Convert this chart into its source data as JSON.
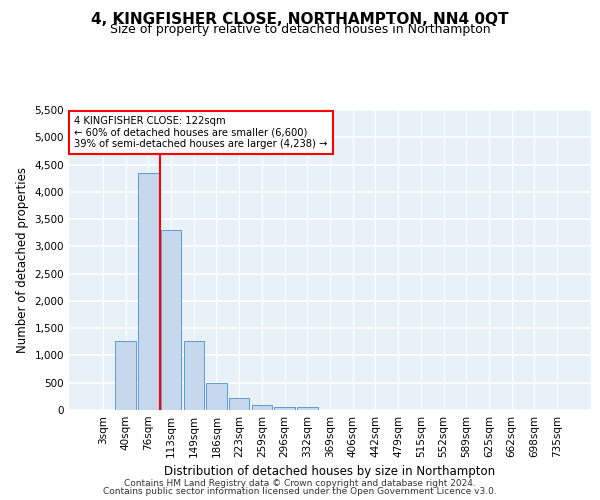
{
  "title": "4, KINGFISHER CLOSE, NORTHAMPTON, NN4 0QT",
  "subtitle": "Size of property relative to detached houses in Northampton",
  "xlabel": "Distribution of detached houses by size in Northampton",
  "ylabel": "Number of detached properties",
  "footer_line1": "Contains HM Land Registry data © Crown copyright and database right 2024.",
  "footer_line2": "Contains public sector information licensed under the Open Government Licence v3.0.",
  "bar_labels": [
    "3sqm",
    "40sqm",
    "76sqm",
    "113sqm",
    "149sqm",
    "186sqm",
    "223sqm",
    "259sqm",
    "296sqm",
    "332sqm",
    "369sqm",
    "406sqm",
    "442sqm",
    "479sqm",
    "515sqm",
    "552sqm",
    "589sqm",
    "625sqm",
    "662sqm",
    "698sqm",
    "735sqm"
  ],
  "bar_values": [
    0,
    1260,
    4350,
    3300,
    1270,
    490,
    220,
    90,
    60,
    50,
    0,
    0,
    0,
    0,
    0,
    0,
    0,
    0,
    0,
    0,
    0
  ],
  "bar_color": "#c5d8ed",
  "bar_edgecolor": "#5b9bd5",
  "annotation_line1": "4 KINGFISHER CLOSE: 122sqm",
  "annotation_line2": "← 60% of detached houses are smaller (6,600)",
  "annotation_line3": "39% of semi-detached houses are larger (4,238) →",
  "annotation_box_color": "white",
  "annotation_box_edgecolor": "red",
  "vline_color": "red",
  "vline_x": 2.5,
  "ylim": [
    0,
    5500
  ],
  "yticks": [
    0,
    500,
    1000,
    1500,
    2000,
    2500,
    3000,
    3500,
    4000,
    4500,
    5000,
    5500
  ],
  "background_color": "#e8f0f8",
  "grid_color": "white",
  "title_fontsize": 11,
  "subtitle_fontsize": 9,
  "axis_label_fontsize": 8.5,
  "tick_fontsize": 7.5,
  "footer_fontsize": 6.5
}
